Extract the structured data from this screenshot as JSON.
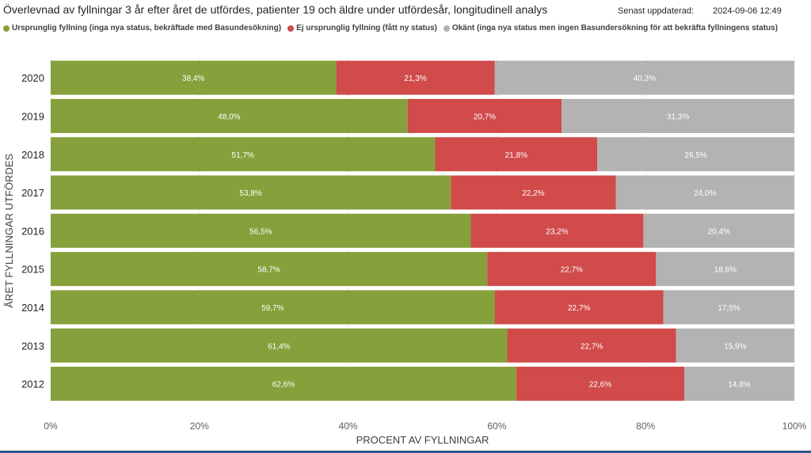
{
  "header": {
    "title": "Överlevnad av fyllningar 3 år efter året de utfördes, patienter 19 och äldre under utfördesår, longitudinell analys",
    "updated_label": "Senast uppdaterad:",
    "updated_value": "2024-09-06 12:49"
  },
  "colors": {
    "green": "#86a03b",
    "red": "#d14b4b",
    "grey": "#b3b3b3"
  },
  "chart_data": {
    "type": "bar",
    "orientation": "horizontal",
    "stacked": true,
    "categories": [
      "2020",
      "2019",
      "2018",
      "2017",
      "2016",
      "2015",
      "2014",
      "2013",
      "2012"
    ],
    "series": [
      {
        "name": "Ursprunglig fyllning (inga nya status, bekräftade med Basundesökning)",
        "color": "#86a03b",
        "values": [
          38.4,
          48.0,
          51.7,
          53.8,
          56.5,
          58.7,
          59.7,
          61.4,
          62.6
        ],
        "labels": [
          "38,4%",
          "48,0%",
          "51,7%",
          "53,8%",
          "56,5%",
          "58,7%",
          "59,7%",
          "61,4%",
          "62,6%"
        ]
      },
      {
        "name": "Ej ursprunglig fyllning (fått ny status)",
        "color": "#d14b4b",
        "values": [
          21.3,
          20.7,
          21.8,
          22.2,
          23.2,
          22.7,
          22.7,
          22.7,
          22.6
        ],
        "labels": [
          "21,3%",
          "20,7%",
          "21,8%",
          "22,2%",
          "23,2%",
          "22,7%",
          "22,7%",
          "22,7%",
          "22,6%"
        ]
      },
      {
        "name": "Okänt (inga nya status men ingen Basundersökning för att bekräfta fyllningens status)",
        "color": "#b3b3b3",
        "values": [
          40.3,
          31.3,
          26.5,
          24.0,
          20.4,
          18.6,
          17.5,
          15.9,
          14.8
        ],
        "labels": [
          "40,3%",
          "31,3%",
          "26,5%",
          "24,0%",
          "20,4%",
          "18,6%",
          "17,5%",
          "15,9%",
          "14,8%"
        ]
      }
    ],
    "xlabel": "PROCENT AV FYLLNINGAR",
    "ylabel": "ÅRET FYLLNINGAR UTFÖRDES",
    "xlim": [
      0,
      100
    ],
    "xticks": [
      0,
      20,
      40,
      60,
      80,
      100
    ],
    "xtick_labels": [
      "0%",
      "20%",
      "40%",
      "60%",
      "80%",
      "100%"
    ],
    "grid": true,
    "legend_position": "top-left"
  }
}
